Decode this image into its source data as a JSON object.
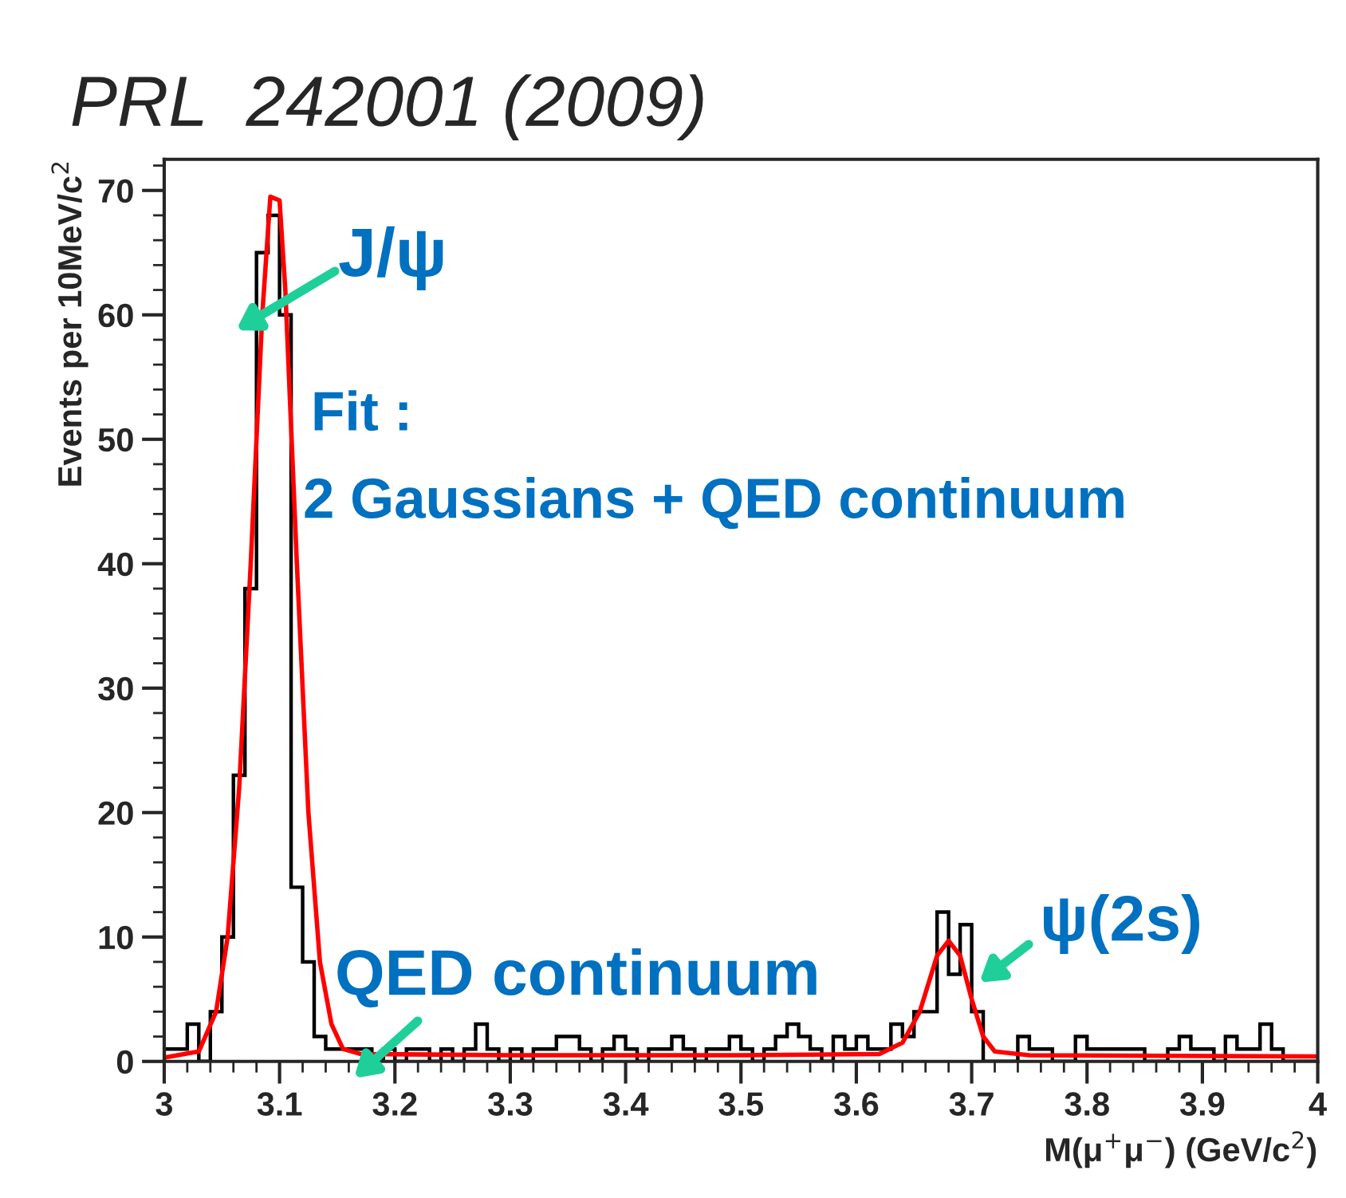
{
  "chart_data": {
    "type": "histogram",
    "title": "PRL  242001 (2009)",
    "xlabel": "M(μ$^{+}$μ$^{−}$) (GeV/c$^{2}$)",
    "ylabel": "Events per 10MeV/c$^{2}$",
    "bins": [
      3.0,
      3.01,
      3.02,
      3.03,
      3.04,
      3.05,
      3.06,
      3.07,
      3.08,
      3.09,
      3.1,
      3.11,
      3.12,
      3.13,
      3.14,
      3.15,
      3.16,
      3.17,
      3.18,
      3.19,
      3.2,
      3.21,
      3.22,
      3.23,
      3.24,
      3.25,
      3.26,
      3.27,
      3.28,
      3.29,
      3.3,
      3.31,
      3.32,
      3.33,
      3.34,
      3.35,
      3.36,
      3.37,
      3.38,
      3.39,
      3.4,
      3.41,
      3.42,
      3.43,
      3.44,
      3.45,
      3.46,
      3.47,
      3.48,
      3.49,
      3.5,
      3.51,
      3.52,
      3.53,
      3.54,
      3.55,
      3.56,
      3.57,
      3.58,
      3.59,
      3.6,
      3.61,
      3.62,
      3.63,
      3.64,
      3.65,
      3.66,
      3.67,
      3.68,
      3.69,
      3.7,
      3.71,
      3.72,
      3.73,
      3.74,
      3.75,
      3.76,
      3.77,
      3.78,
      3.79,
      3.8,
      3.81,
      3.82,
      3.83,
      3.84,
      3.85,
      3.86,
      3.87,
      3.88,
      3.89,
      3.9,
      3.91,
      3.92,
      3.93,
      3.94,
      3.95,
      3.96,
      3.97,
      3.98,
      3.99,
      4.0
    ],
    "values": [
      1,
      1,
      3,
      0,
      4,
      10,
      23,
      38,
      65,
      68,
      60,
      14,
      8,
      2,
      1,
      1,
      1,
      1,
      0,
      1,
      0,
      1,
      1,
      0,
      1,
      0,
      1,
      3,
      1,
      0,
      1,
      0,
      1,
      1,
      2,
      2,
      1,
      0,
      1,
      2,
      1,
      0,
      1,
      1,
      2,
      1,
      0,
      1,
      1,
      2,
      1,
      0,
      1,
      2,
      3,
      2,
      1,
      0,
      2,
      1,
      2,
      1,
      1,
      3,
      2,
      4,
      4,
      12,
      7,
      11,
      4,
      0,
      0,
      0,
      2,
      1,
      1,
      0,
      0,
      2,
      1,
      1,
      1,
      1,
      1,
      0,
      0,
      1,
      2,
      1,
      1,
      0,
      2,
      1,
      1,
      3,
      1,
      0,
      0,
      0
    ],
    "color": "#000000",
    "series": [
      {
        "type": "line",
        "color": "#ff0000",
        "x": [
          3.0,
          3.03,
          3.045,
          3.055,
          3.065,
          3.075,
          3.085,
          3.092,
          3.1,
          3.105,
          3.115,
          3.125,
          3.135,
          3.145,
          3.155,
          3.17,
          3.3,
          3.5,
          3.62,
          3.64,
          3.655,
          3.67,
          3.68,
          3.69,
          3.7,
          3.71,
          3.72,
          3.75,
          4.0
        ],
        "values": [
          0.3,
          0.8,
          4,
          10,
          22,
          40,
          60,
          69.5,
          69.2,
          62,
          40,
          20,
          8,
          3,
          1,
          0.6,
          0.5,
          0.5,
          0.6,
          1.5,
          4,
          8.5,
          9.7,
          8.5,
          5,
          2,
          0.8,
          0.5,
          0.4
        ]
      }
    ],
    "annotations": [
      "J/ψ",
      "Fit :",
      "2 Gaussians + QED continuum",
      "QED continuum",
      "ψ(2s)"
    ],
    "xlim": [
      3,
      4
    ],
    "xticks": [
      3,
      3.1,
      3.2,
      3.3,
      3.4,
      3.5,
      3.6,
      3.7,
      3.8,
      3.9,
      4
    ],
    "ylim": [
      0,
      72.5
    ],
    "yticks": [
      0,
      10,
      20,
      30,
      40,
      50,
      60,
      70
    ],
    "grid": false,
    "legend": false
  }
}
